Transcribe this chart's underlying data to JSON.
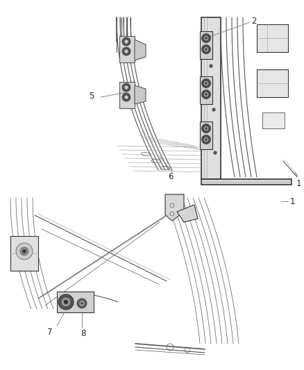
{
  "bg": "#ffffff",
  "lc": "#555555",
  "lc_light": "#aaaaaa",
  "lc_dark": "#333333",
  "fig_w": 4.38,
  "fig_h": 5.33,
  "dpi": 100,
  "label_color": "#222222",
  "label_fs": 8.5,
  "leader_color": "#777777"
}
